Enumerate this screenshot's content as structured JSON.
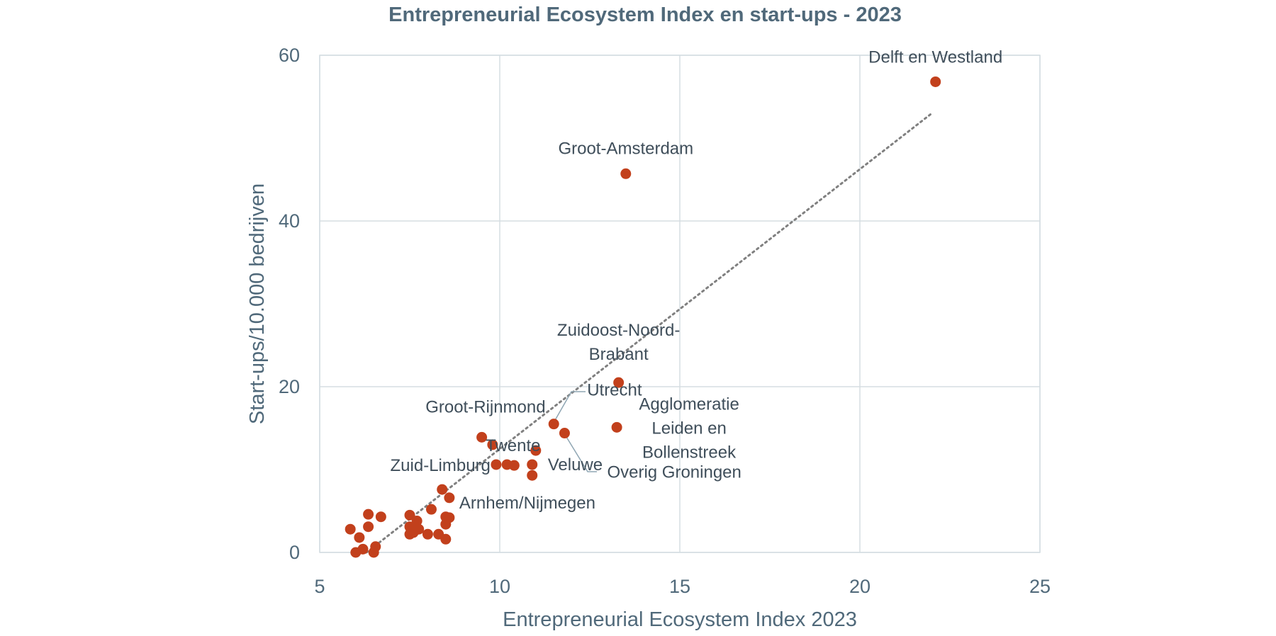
{
  "chart_data": {
    "type": "scatter",
    "title": "Entrepreneurial Ecosystem Index en start-ups - 2023",
    "xlabel": "Entrepreneurial Ecosystem Index 2023",
    "ylabel": "Start-ups/10.000 bedrijven",
    "xlim": [
      5,
      25
    ],
    "ylim": [
      0,
      60
    ],
    "xticks": [
      "5",
      "10",
      "15",
      "20",
      "25"
    ],
    "yticks": [
      "0",
      "20",
      "40",
      "60"
    ],
    "grid": true,
    "legend": "none",
    "colors": {
      "points": "#c2401c",
      "trendline": "#808080",
      "text": "#50697a"
    },
    "trendline": {
      "style": "dotted",
      "x": [
        6.3,
        22.0
      ],
      "y": [
        0.0,
        53.0
      ]
    },
    "points": [
      {
        "x": 22.1,
        "y": 56.8,
        "label": "Delft en Westland"
      },
      {
        "x": 13.5,
        "y": 45.7,
        "label": "Groot-Amsterdam"
      },
      {
        "x": 13.3,
        "y": 20.5,
        "label": "Zuidoost-Noord-Brabant"
      },
      {
        "x": 13.25,
        "y": 15.1,
        "label": "Agglomeratie Leiden en Bollenstreek"
      },
      {
        "x": 11.5,
        "y": 15.5,
        "label": "Utrecht"
      },
      {
        "x": 11.8,
        "y": 14.4,
        "label": "Overig Groningen"
      },
      {
        "x": 9.5,
        "y": 13.9,
        "label": "Groot-Rijnmond"
      },
      {
        "x": 9.8,
        "y": 13.0,
        "label": "Twente"
      },
      {
        "x": 9.9,
        "y": 10.6,
        "label": "Zuid-Limburg"
      },
      {
        "x": 10.9,
        "y": 9.3,
        "label": "Veluwe"
      },
      {
        "x": 8.6,
        "y": 6.6,
        "label": "Arnhem/Nijmegen"
      },
      {
        "x": 11.0,
        "y": 12.3,
        "label": ""
      },
      {
        "x": 10.2,
        "y": 10.6,
        "label": ""
      },
      {
        "x": 10.4,
        "y": 10.5,
        "label": ""
      },
      {
        "x": 10.9,
        "y": 10.6,
        "label": ""
      },
      {
        "x": 8.4,
        "y": 7.6,
        "label": ""
      },
      {
        "x": 8.1,
        "y": 5.2,
        "label": ""
      },
      {
        "x": 8.5,
        "y": 4.3,
        "label": ""
      },
      {
        "x": 8.6,
        "y": 4.2,
        "label": ""
      },
      {
        "x": 8.5,
        "y": 3.4,
        "label": ""
      },
      {
        "x": 8.5,
        "y": 1.6,
        "label": ""
      },
      {
        "x": 8.3,
        "y": 2.2,
        "label": ""
      },
      {
        "x": 8.0,
        "y": 2.2,
        "label": ""
      },
      {
        "x": 7.75,
        "y": 2.8,
        "label": ""
      },
      {
        "x": 7.6,
        "y": 2.4,
        "label": ""
      },
      {
        "x": 7.5,
        "y": 2.2,
        "label": ""
      },
      {
        "x": 7.5,
        "y": 3.1,
        "label": ""
      },
      {
        "x": 7.5,
        "y": 4.5,
        "label": ""
      },
      {
        "x": 7.7,
        "y": 3.8,
        "label": ""
      },
      {
        "x": 6.7,
        "y": 4.3,
        "label": ""
      },
      {
        "x": 6.35,
        "y": 4.6,
        "label": ""
      },
      {
        "x": 6.35,
        "y": 3.1,
        "label": ""
      },
      {
        "x": 5.85,
        "y": 2.8,
        "label": ""
      },
      {
        "x": 6.1,
        "y": 1.8,
        "label": ""
      },
      {
        "x": 6.55,
        "y": 0.7,
        "label": ""
      },
      {
        "x": 6.2,
        "y": 0.4,
        "label": ""
      },
      {
        "x": 6.0,
        "y": 0.0,
        "label": ""
      },
      {
        "x": 6.5,
        "y": 0.0,
        "label": ""
      }
    ]
  }
}
